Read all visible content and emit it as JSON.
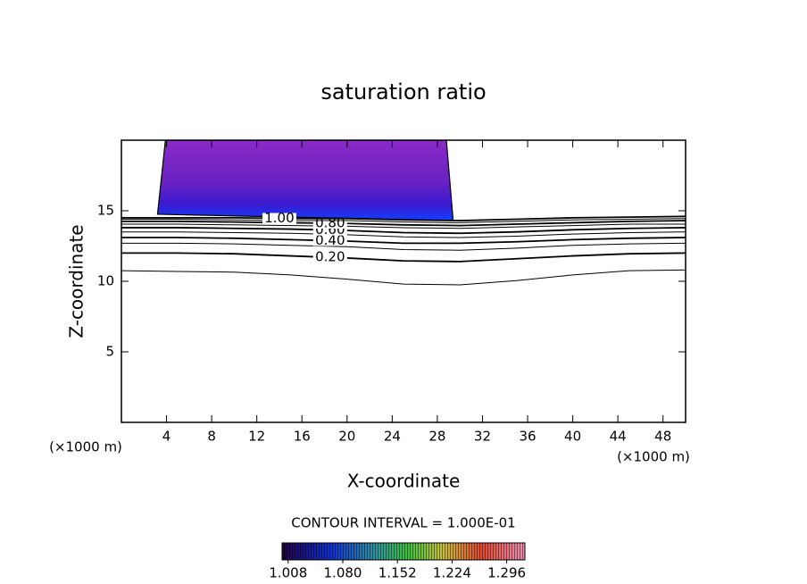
{
  "chart_data": {
    "type": "contour",
    "title": "saturation ratio",
    "xlabel": "X-coordinate",
    "ylabel": "Z-coordinate",
    "x_unit_left": "(×1000 m)",
    "x_unit_right": "(×1000 m)",
    "interval_note": "CONTOUR INTERVAL = 1.000E-01",
    "xlim": [
      0,
      50
    ],
    "ylim": [
      0,
      20
    ],
    "xticks": [
      4,
      8,
      12,
      16,
      20,
      24,
      28,
      32,
      36,
      40,
      44,
      48
    ],
    "yticks": [
      5,
      10,
      15
    ],
    "contours": [
      {
        "level": 0.1,
        "x": [
          0,
          5,
          10,
          15,
          20,
          25,
          30,
          35,
          40,
          45,
          50
        ],
        "z": [
          10.75,
          10.7,
          10.65,
          10.45,
          10.15,
          9.8,
          9.75,
          10.05,
          10.45,
          10.75,
          10.8
        ]
      },
      {
        "level": 0.2,
        "label": "0.20",
        "x": [
          0,
          5,
          10,
          15,
          20,
          25,
          30,
          35,
          40,
          45,
          50
        ],
        "z": [
          12.0,
          12.0,
          11.95,
          11.8,
          11.65,
          11.45,
          11.4,
          11.6,
          11.8,
          11.95,
          12.0
        ]
      },
      {
        "level": 0.3,
        "x": [
          0,
          5,
          10,
          15,
          20,
          25,
          30,
          35,
          40,
          45,
          50
        ],
        "z": [
          12.7,
          12.7,
          12.65,
          12.55,
          12.45,
          12.25,
          12.2,
          12.35,
          12.55,
          12.65,
          12.7
        ]
      },
      {
        "level": 0.4,
        "label": "0.40",
        "x": [
          0,
          5,
          10,
          15,
          20,
          25,
          30,
          35,
          40,
          45,
          50
        ],
        "z": [
          13.1,
          13.1,
          13.05,
          12.95,
          12.85,
          12.7,
          12.7,
          12.8,
          12.95,
          13.05,
          13.1
        ]
      },
      {
        "level": 0.5,
        "x": [
          0,
          5,
          10,
          15,
          20,
          25,
          30,
          35,
          40,
          45,
          50
        ],
        "z": [
          13.5,
          13.5,
          13.45,
          13.4,
          13.3,
          13.15,
          13.1,
          13.2,
          13.35,
          13.45,
          13.5
        ]
      },
      {
        "level": 0.6,
        "label": "0.60",
        "x": [
          0,
          5,
          10,
          15,
          20,
          25,
          30,
          35,
          40,
          45,
          50
        ],
        "z": [
          13.8,
          13.8,
          13.75,
          13.7,
          13.6,
          13.45,
          13.4,
          13.5,
          13.65,
          13.75,
          13.8
        ]
      },
      {
        "level": 0.7,
        "x": [
          0,
          5,
          10,
          15,
          20,
          25,
          30,
          35,
          40,
          45,
          50
        ],
        "z": [
          14.05,
          14.05,
          14.0,
          13.95,
          13.9,
          13.8,
          13.75,
          13.85,
          13.95,
          14.05,
          14.05
        ]
      },
      {
        "level": 0.8,
        "label": "0.80",
        "x": [
          0,
          5,
          10,
          15,
          20,
          25,
          30,
          35,
          40,
          45,
          50
        ],
        "z": [
          14.25,
          14.25,
          14.2,
          14.15,
          14.1,
          14.0,
          13.95,
          14.05,
          14.15,
          14.25,
          14.3
        ]
      },
      {
        "level": 0.9,
        "x": [
          0,
          5,
          10,
          15,
          20,
          25,
          30,
          35,
          40,
          45,
          50
        ],
        "z": [
          14.4,
          14.4,
          14.35,
          14.3,
          14.3,
          14.2,
          14.15,
          14.25,
          14.35,
          14.4,
          14.45
        ]
      },
      {
        "level": 1.0,
        "label": "1.00",
        "x": [
          0,
          5,
          10,
          15,
          20,
          25,
          30,
          35,
          40,
          45,
          50
        ],
        "z": [
          14.5,
          14.5,
          14.5,
          14.45,
          14.45,
          14.35,
          14.3,
          14.4,
          14.5,
          14.55,
          14.6
        ]
      }
    ],
    "filled_region": {
      "x": [
        3.9,
        3.2,
        29.4,
        28.8
      ],
      "z": [
        20,
        14.75,
        14.3,
        20
      ]
    },
    "clim": [
      1.0,
      1.32
    ],
    "colorbar_ticks": [
      1.008,
      {
        "value": 1.08,
        "label": "1.080"
      },
      1.152,
      1.224,
      1.296
    ]
  }
}
